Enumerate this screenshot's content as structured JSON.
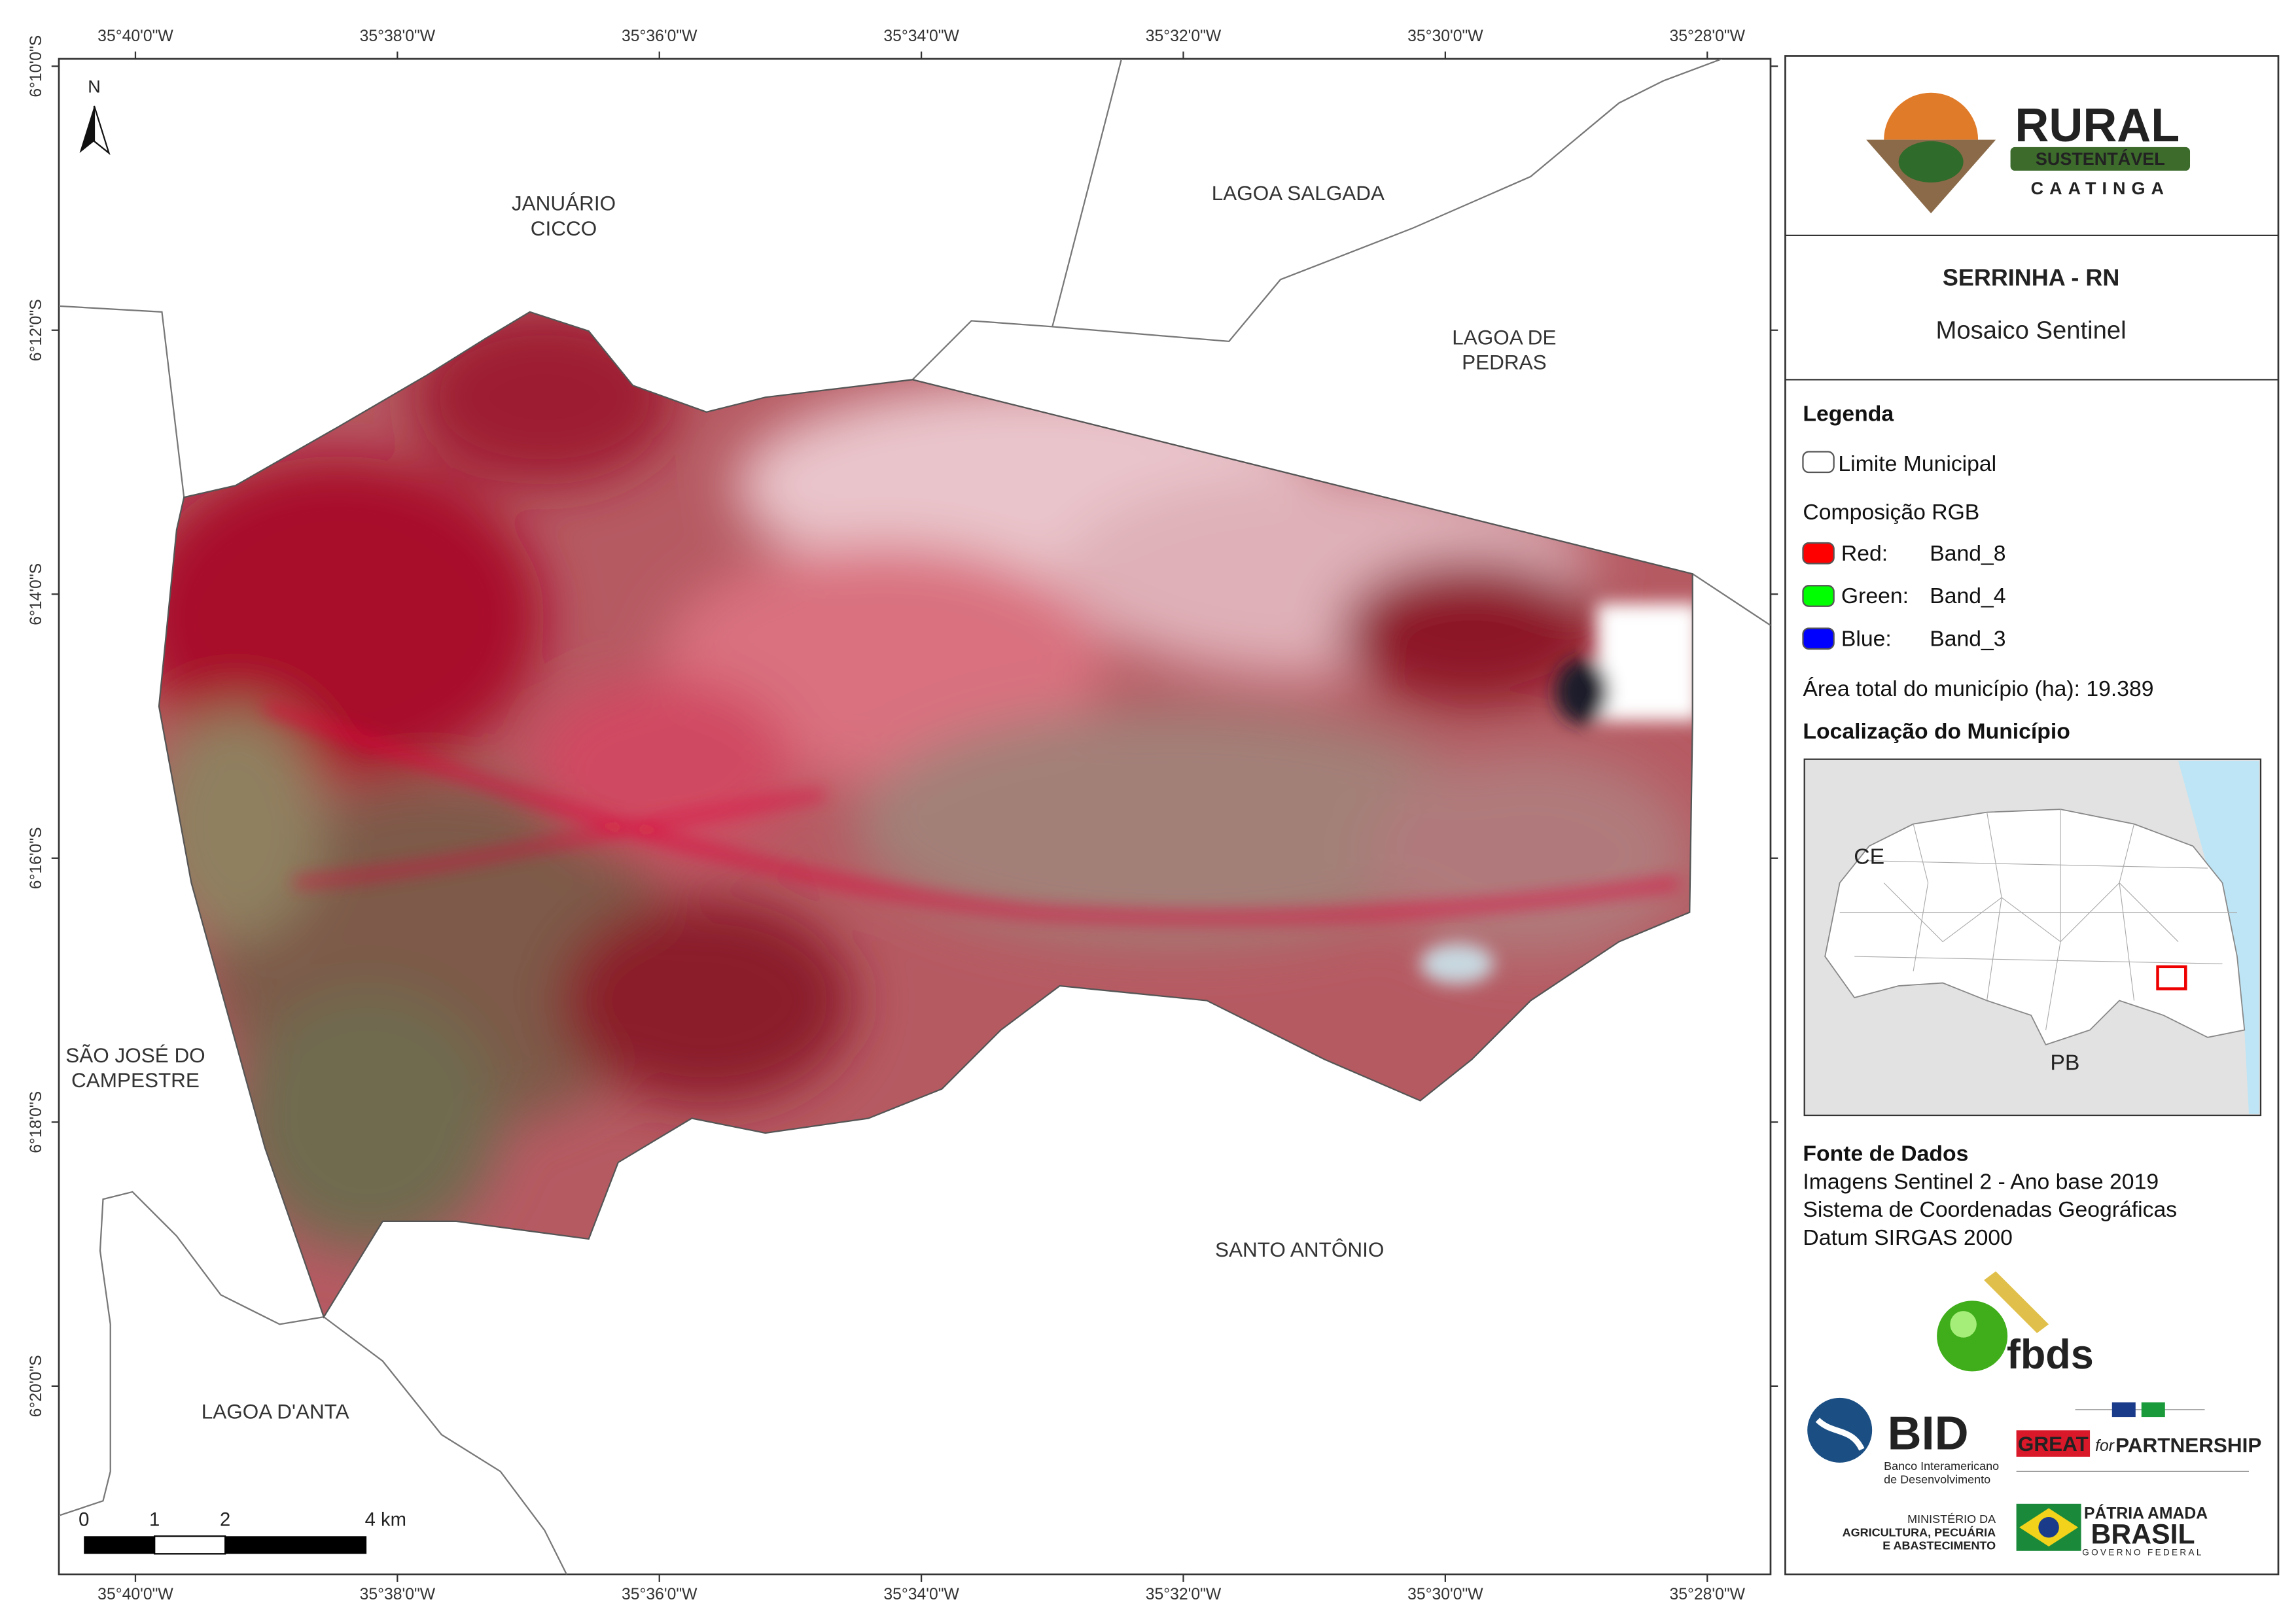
{
  "map": {
    "graticule": {
      "top": [
        "35°40'0\"W",
        "35°38'0\"W",
        "35°36'0\"W",
        "35°34'0\"W",
        "35°32'0\"W",
        "35°30'0\"W",
        "35°28'0\"W"
      ],
      "bottom": [
        "35°40'0\"W",
        "35°38'0\"W",
        "35°36'0\"W",
        "35°34'0\"W",
        "35°32'0\"W",
        "35°30'0\"W",
        "35°28'0\"W"
      ],
      "left": [
        "6°10'0\"S",
        "6°12'0\"S",
        "6°14'0\"S",
        "6°16'0\"S",
        "6°18'0\"S",
        "6°20'0\"S"
      ]
    },
    "places": [
      {
        "lines": [
          "JANUÁRIO",
          "CICCO"
        ]
      },
      {
        "lines": [
          "LAGOA SALGADA"
        ]
      },
      {
        "lines": [
          "LAGOA DE",
          "PEDRAS"
        ]
      },
      {
        "lines": [
          "SÃO JOSÉ DO",
          "CAMPESTRE"
        ]
      },
      {
        "lines": [
          "SANTO ANTÔNIO"
        ]
      },
      {
        "lines": [
          "LAGOA D'ANTA"
        ]
      }
    ],
    "north": "N",
    "scale_bar": [
      "0",
      "1",
      "2",
      "4 km"
    ]
  },
  "panel": {
    "logo": {
      "rural": "RURAL",
      "sustentavel": "SUSTENTÁVEL",
      "caatinga": "CAATINGA"
    },
    "title": "SERRINHA - RN",
    "subtitle": "Mosaico Sentinel",
    "legend": {
      "heading": "Legenda",
      "boundary": "Limite Municipal",
      "composition": "Composição RGB",
      "bands": [
        {
          "label": "Red:",
          "band": "Band_8",
          "color": "#ff0000"
        },
        {
          "label": "Green:",
          "band": "Band_4",
          "color": "#00ff00"
        },
        {
          "label": "Blue:",
          "band": "Band_3",
          "color": "#0000ff"
        }
      ],
      "area": "Área total do município (ha): 19.389"
    },
    "location": {
      "heading": "Localização do Município",
      "labels": [
        "CE",
        "PB"
      ]
    },
    "sources": {
      "heading": "Fonte de Dados",
      "lines": [
        "Imagens Sentinel 2 - Ano base 2019",
        "Sistema de Coordenadas Geográficas",
        "Datum SIRGAS 2000"
      ]
    },
    "partners": {
      "fbds": "fbds",
      "bid": "BID",
      "bid_name": [
        "Banco Interamericano",
        "de Desenvolvimento"
      ],
      "great": "GREAT",
      "great_for": "for",
      "partnership": "PARTNERSHIP",
      "ministry": [
        "MINISTÉRIO DA",
        "AGRICULTURA, PECUÁRIA",
        "E ABASTECIMENTO"
      ],
      "patria": "PÁTRIA AMADA",
      "brasil": "BRASIL",
      "governo": "GOVERNO FEDERAL"
    }
  }
}
